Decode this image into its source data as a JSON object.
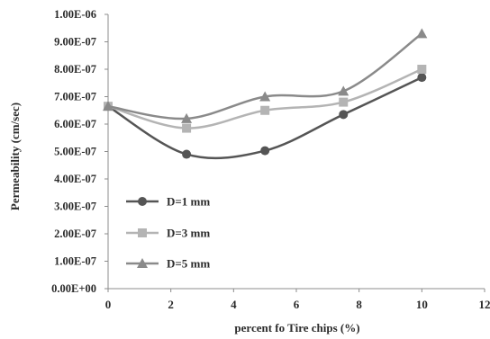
{
  "chart_data": {
    "type": "line",
    "xlabel": "percent fo Tire chips (%)",
    "ylabel": "Permeability (cm/sec)",
    "xlim": [
      0,
      12
    ],
    "ylim": [
      0,
      1e-06
    ],
    "x_ticks": [
      "0",
      "2",
      "4",
      "6",
      "8",
      "10",
      "12"
    ],
    "y_ticks": [
      "0.00E+00",
      "1.00E-07",
      "2.00E-07",
      "3.00E-07",
      "4.00E-07",
      "5.00E-07",
      "6.00E-07",
      "7.00E-07",
      "8.00E-07",
      "9.00E-07",
      "1.00E-06"
    ],
    "x": [
      0,
      2.5,
      5,
      7.5,
      10
    ],
    "smooth": true,
    "grid": false,
    "legend_position": "bottom-left",
    "series": [
      {
        "name": "D=1 mm",
        "marker": "circle",
        "color": "#555555",
        "values": [
          6.65e-07,
          4.9e-07,
          5.03e-07,
          6.35e-07,
          7.7e-07
        ]
      },
      {
        "name": "D=3 mm",
        "marker": "square",
        "color": "#b4b4b4",
        "values": [
          6.65e-07,
          5.85e-07,
          6.5e-07,
          6.8e-07,
          8e-07
        ]
      },
      {
        "name": "D=5 mm",
        "marker": "triangle",
        "color": "#8a8a8a",
        "values": [
          6.65e-07,
          6.2e-07,
          7e-07,
          7.2e-07,
          9.3e-07
        ]
      }
    ]
  }
}
